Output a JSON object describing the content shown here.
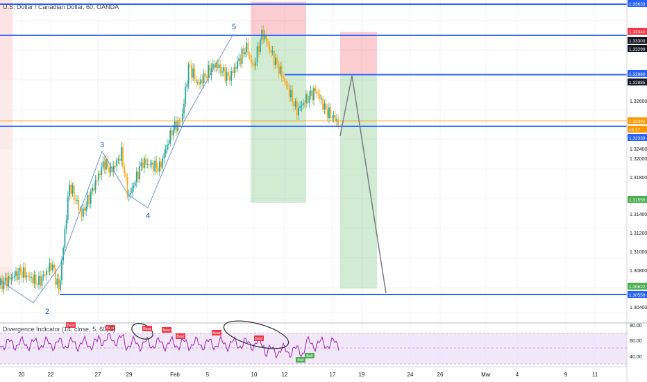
{
  "chart_title": "U.S. Dollar / Canadian Dollar, 60, OANDA",
  "indicator_title": "Divergence Indicator (14, close, 5, 60, 5)",
  "colors": {
    "up": "#26a69a",
    "down": "#f6a91b",
    "level": "#2962ff",
    "wave": "#1e53c8",
    "target": "#4caf50",
    "stop": "#f23645",
    "rsi": "#9c27b0",
    "rsi_band": "#e9d5f5",
    "current": "#ff9800"
  },
  "chart_data": {
    "type": "candlestick",
    "symbol": "USDCAD",
    "x_ticks": [
      "20",
      "22",
      "27",
      "29",
      "Feb",
      "5",
      "10",
      "12",
      "17",
      "19",
      "24",
      "26",
      "Mar",
      "4",
      "9",
      "11"
    ],
    "y_ticks": [
      "1.32600",
      "1.32400",
      "1.32000",
      "1.31800",
      "1.31400",
      "1.31200",
      "1.31000",
      "1.30800",
      "1.30400"
    ],
    "price_labels": [
      {
        "value": "1.33633",
        "kind": "level"
      },
      {
        "value": "1.33340",
        "kind": "stop"
      },
      {
        "value": "1.33303",
        "kind": "dark"
      },
      {
        "value": "1.33299",
        "kind": "dark"
      },
      {
        "value": "1.32886",
        "kind": "level"
      },
      {
        "value": "1.32885",
        "kind": "dark"
      },
      {
        "value": "1.32392",
        "kind": "current"
      },
      {
        "value": "43:17",
        "kind": "current"
      },
      {
        "value": "1.32339",
        "kind": "level"
      },
      {
        "value": "1.31555",
        "kind": "target"
      },
      {
        "value": "1.30622",
        "kind": "target"
      },
      {
        "value": "1.30558",
        "kind": "level"
      }
    ],
    "horizontal_levels": [
      1.33633,
      1.33303,
      1.32886,
      1.32339,
      1.30558
    ],
    "wave_labels": [
      "5",
      "3",
      "4",
      "2"
    ],
    "wave_points": [
      {
        "label": "2",
        "price": 1.3074
      },
      {
        "label": "3",
        "price": 1.3214
      },
      {
        "label": "4",
        "price": 1.3156
      },
      {
        "label": "5",
        "price": 1.333
      }
    ],
    "positions": [
      {
        "type": "short",
        "entry": 1.333,
        "stop": 1.3366,
        "target": 1.3153
      },
      {
        "type": "short",
        "entry": 1.3288,
        "stop": 1.3334,
        "target": 1.3062
      }
    ],
    "projection": [
      1.3234,
      1.3288,
      1.3055
    ],
    "indicator": {
      "name": "RSI",
      "y_ticks": [
        "80.00",
        "60.00",
        "40.00"
      ],
      "overbought": 70,
      "oversold": 30,
      "signals": [
        "Bear",
        "Bear",
        "Bear",
        "Bear",
        "Bear",
        "Bear",
        "Bear",
        "Bull",
        "Bull"
      ]
    }
  }
}
